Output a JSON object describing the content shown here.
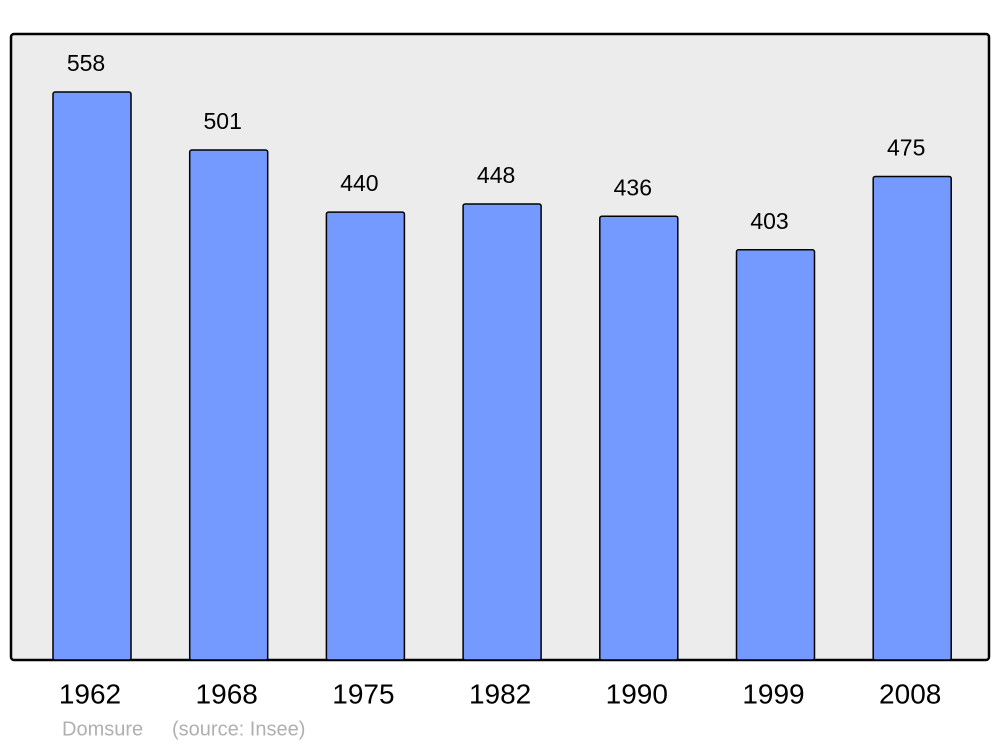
{
  "chart_data": {
    "type": "bar",
    "categories": [
      "1962",
      "1968",
      "1975",
      "1982",
      "1990",
      "1999",
      "2008"
    ],
    "values": [
      558,
      501,
      440,
      448,
      436,
      403,
      475
    ],
    "color": "#7499ff",
    "ylim": [
      0,
      615
    ],
    "caption": "Domsure",
    "source": "(source: Insee)"
  }
}
